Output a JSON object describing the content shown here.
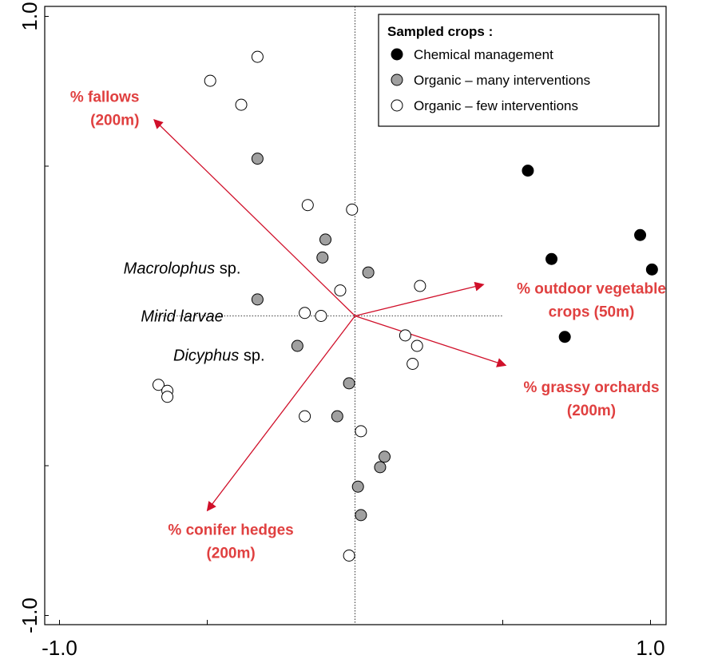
{
  "chart_data": {
    "type": "scatter",
    "title": "",
    "xlabel": "",
    "ylabel": "",
    "xlim": [
      -1.05,
      1.05
    ],
    "ylim": [
      -1.05,
      1.05
    ],
    "x_tick_labels": [
      "-1.0",
      "1.0"
    ],
    "y_tick_labels": [
      "-1.0",
      "1.0"
    ],
    "grid": false,
    "reference_lines": [
      "x=0",
      "y=0"
    ],
    "legend": {
      "title": "Sampled crops :",
      "placement": "top-right",
      "entries": [
        {
          "label": "Chemical  management",
          "fill": "#000000"
        },
        {
          "label": "Organic – many interventions",
          "fill": "#a0a0a0"
        },
        {
          "label": "Organic – few interventions",
          "fill": "#ffffff"
        }
      ]
    },
    "series": [
      {
        "name": "Chemical  management",
        "fill": "#000000",
        "points": [
          [
            0.585,
            0.485
          ],
          [
            0.665,
            0.19
          ],
          [
            0.965,
            0.27
          ],
          [
            1.005,
            0.155
          ],
          [
            0.71,
            -0.07
          ]
        ]
      },
      {
        "name": "Organic – many interventions",
        "fill": "#a0a0a0",
        "points": [
          [
            -0.33,
            0.525
          ],
          [
            -0.1,
            0.255
          ],
          [
            -0.11,
            0.195
          ],
          [
            0.045,
            0.145
          ],
          [
            -0.33,
            0.055
          ],
          [
            -0.195,
            -0.1
          ],
          [
            -0.02,
            -0.225
          ],
          [
            -0.06,
            -0.335
          ],
          [
            0.1,
            -0.47
          ],
          [
            0.085,
            -0.505
          ],
          [
            0.01,
            -0.57
          ],
          [
            0.02,
            -0.665
          ]
        ]
      },
      {
        "name": "Organic – few interventions",
        "fill": "#ffffff",
        "points": [
          [
            -0.33,
            0.865
          ],
          [
            -0.49,
            0.785
          ],
          [
            -0.385,
            0.705
          ],
          [
            -0.16,
            0.37
          ],
          [
            -0.01,
            0.355
          ],
          [
            0.22,
            0.1
          ],
          [
            -0.05,
            0.085
          ],
          [
            -0.17,
            0.01
          ],
          [
            -0.115,
            0
          ],
          [
            0.17,
            -0.065
          ],
          [
            0.21,
            -0.1
          ],
          [
            0.195,
            -0.16
          ],
          [
            -0.665,
            -0.23
          ],
          [
            -0.635,
            -0.25
          ],
          [
            -0.635,
            -0.27
          ],
          [
            -0.17,
            -0.335
          ],
          [
            0.02,
            -0.385
          ],
          [
            -0.02,
            -0.8
          ]
        ]
      }
    ],
    "arrows": [
      {
        "label_lines": [
          "% fallows",
          "(200m)"
        ],
        "x": -0.68,
        "y": 0.655,
        "label_anchor": "end",
        "label_x": -0.73,
        "label_y": 0.715
      },
      {
        "label_lines": [
          "% outdoor vegetable",
          "crops (50m)"
        ],
        "x": 0.435,
        "y": 0.105,
        "label_anchor": "middle",
        "label_x": 0.8,
        "label_y": 0.075
      },
      {
        "label_lines": [
          "% grassy orchards",
          "(200m)"
        ],
        "x": 0.51,
        "y": -0.165,
        "label_anchor": "middle",
        "label_x": 0.8,
        "label_y": -0.255
      },
      {
        "label_lines": [
          "% conifer hedges",
          "(200m)"
        ],
        "x": -0.5,
        "y": -0.65,
        "label_anchor": "middle",
        "label_x": -0.42,
        "label_y": -0.73
      }
    ],
    "species_labels": [
      {
        "name": "Macrolophus",
        "suffix": " sp.",
        "x": -0.585,
        "y": 0.16
      },
      {
        "name": "Mirid larvae",
        "suffix": "",
        "x": -0.585,
        "y": 0.0
      },
      {
        "name": "Dicyphus",
        "suffix": " sp.",
        "x": -0.46,
        "y": -0.13
      }
    ]
  }
}
